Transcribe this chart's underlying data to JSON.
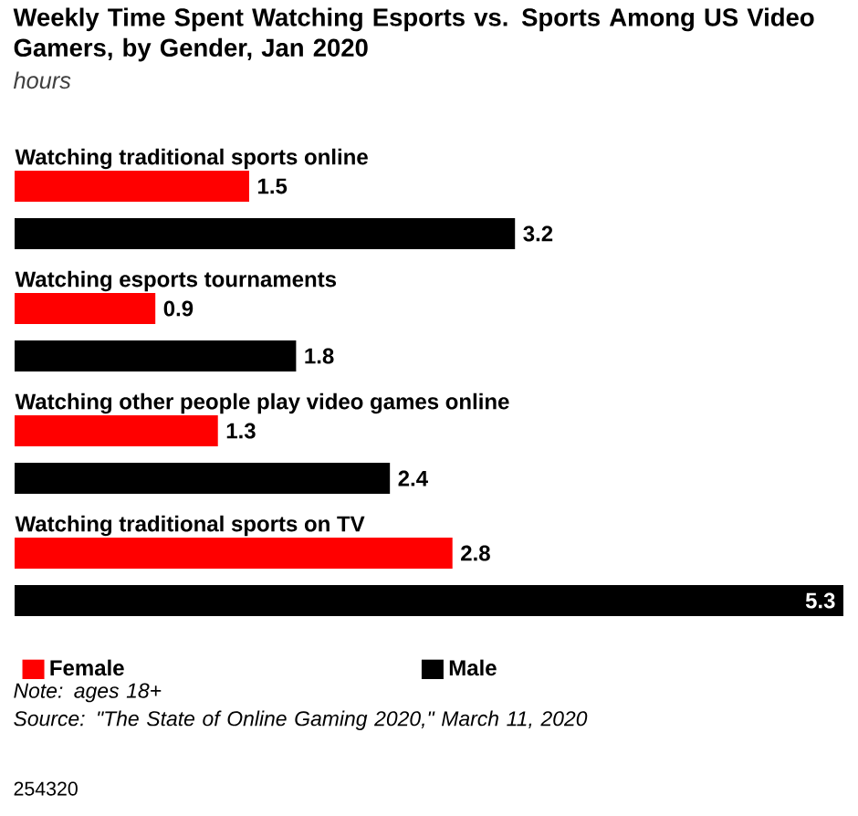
{
  "chart_data": {
    "type": "bar",
    "orientation": "horizontal",
    "title": "Weekly Time Spent Watching Esports vs. Sports Among US Video Gamers, by Gender, Jan 2020",
    "subtitle": "hours",
    "categories": [
      "Watching traditional sports online",
      "Watching esports tournaments",
      "Watching other people play video games online",
      "Watching traditional sports on TV"
    ],
    "series": [
      {
        "name": "Female",
        "color": "#ff0000",
        "values": [
          1.5,
          0.9,
          1.3,
          2.8
        ]
      },
      {
        "name": "Male",
        "color": "#000000",
        "values": [
          3.2,
          1.8,
          2.4,
          5.3
        ]
      }
    ],
    "data_labels": true,
    "legend": "bottom",
    "annotations": [
      "Note: ages 18+",
      "Source: \"The State of Online Gaming 2020,\" March 11, 2020",
      "254320"
    ]
  }
}
